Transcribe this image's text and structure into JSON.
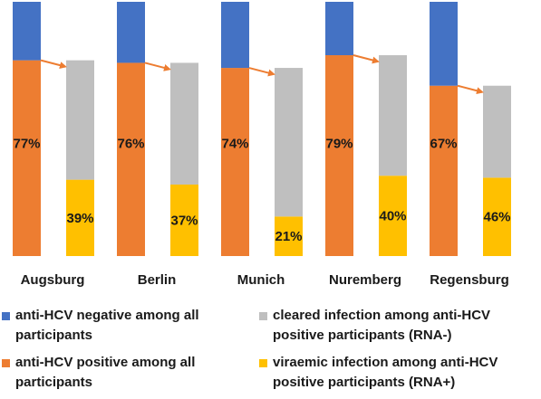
{
  "chart_data": {
    "type": "bar",
    "subtype": "paired-stacked-columns",
    "categories": [
      "Augsburg",
      "Berlin",
      "Munich",
      "Nuremberg",
      "Regensburg"
    ],
    "series": [
      {
        "name": "anti-HCV negative among all participants",
        "color": "#4472C4",
        "values": [
          23,
          24,
          26,
          21,
          33
        ]
      },
      {
        "name": "anti-HCV positive among all participants",
        "color": "#ED7D31",
        "values": [
          77,
          76,
          74,
          79,
          67
        ],
        "labels": [
          "77%",
          "76%",
          "74%",
          "79%",
          "67%"
        ]
      },
      {
        "name": "cleared infection among anti-HCV positive participants (RNA-)",
        "color": "#BFBFBF",
        "values": [
          61,
          63,
          79,
          60,
          54
        ]
      },
      {
        "name": "viraemic infection among anti-HCV positive participants (RNA+)",
        "color": "#FFC000",
        "values": [
          39,
          37,
          21,
          40,
          46
        ],
        "labels": [
          "39%",
          "37%",
          "21%",
          "40%",
          "46%"
        ]
      }
    ],
    "connector_color": "#ED7D31",
    "legend_position": "bottom",
    "grid": false
  },
  "legend": {
    "negative": [
      "anti-HCV negative among all",
      "participants"
    ],
    "positive": [
      "anti-HCV positive among all",
      "participants"
    ],
    "cleared": [
      "cleared infection among anti-HCV",
      "positive participants (RNA-)"
    ],
    "viraemic": [
      "viraemic infection among anti-HCV",
      "positive participants (RNA+)"
    ]
  }
}
